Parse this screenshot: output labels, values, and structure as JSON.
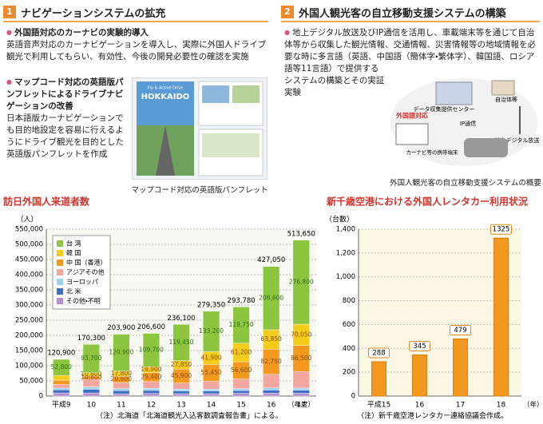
{
  "sections": [
    {
      "number": "1",
      "title": "ナビゲーションシステムの拡充",
      "items": [
        {
          "head": "外国語対応のカーナビの実験的導入",
          "body": "英語音声対応のカーナビゲーションを導入し、実際に外国人ドライブ観光で利用してもらい、有効性、今後の開発必要性の確認を実施"
        },
        {
          "head": "マップコード対応の英語版パンフレットによるドライブナビゲーションの改善",
          "body": "日本語版カーナビゲーションでも目的地設定を容易に行えるようにドライブ観光を目的とした英語版パンフレットを作成"
        }
      ],
      "image_texts": [
        "Fly & Active Drive",
        "HOKKAIDO"
      ],
      "caption": "マップコード対応の英語版パンフレット"
    },
    {
      "number": "2",
      "title": "外国人観光客の自立移動支援システムの構築",
      "items": [
        {
          "body": "地上デジタル放送及びIP通信を活用し、車載端末等を通じて自治体等から収集した観光情報、交通情報、災害情報等の地域情報を必要な時に多言語（英語、中国語（簡体字・繁体字）、韓国語、ロシア語等11言語）で提供するシステムの構築とその実証実験"
        }
      ],
      "diagram_labels": [
        "データ収集提供センター",
        "自治体等",
        "IP通信",
        "地上デジタル放送等",
        "外国語対応",
        "カーナビ等の携帯端末"
      ],
      "caption": "外国人観光客の自立移動支援システムの概要"
    }
  ],
  "chart_data": [
    {
      "type": "bar",
      "stacked": true,
      "title": "訪日外国人来道者数",
      "y_unit": "（人）",
      "x_unit": "（年度）",
      "note": "（注）北海道「北海道観光入込客数調査報告書」による。",
      "categories": [
        "平成9",
        "10",
        "11",
        "12",
        "13",
        "14",
        "15",
        "16",
        "17"
      ],
      "ylim": [
        0,
        550000
      ],
      "yticks": [
        0,
        {
          "value": 50000,
          "label": "50,000"
        },
        {
          "value": 100000,
          "label": "100,000"
        },
        {
          "value": 150000,
          "label": "150,000"
        },
        {
          "value": 200000,
          "label": "200,000"
        },
        {
          "value": 250000,
          "label": "250,000"
        },
        {
          "value": 300000,
          "label": "300,000"
        },
        {
          "value": 350000,
          "label": "350,000"
        },
        {
          "value": 400000,
          "label": "400,000"
        },
        {
          "value": 450000,
          "label": "450,000"
        },
        {
          "value": 500000,
          "label": "500,000"
        },
        {
          "value": 550000,
          "label": "550,000"
        }
      ],
      "grid": true,
      "legend": "top-left",
      "series": [
        {
          "name": "台 湾",
          "color": "#8cc63f",
          "values": [
            52800,
            93700,
            120900,
            109700,
            119450,
            133200,
            119750,
            208600,
            276800
          ],
          "value_labels": [
            "52,800",
            "93,700",
            "120,900",
            "109,700",
            "119,450",
            "133,200",
            "119,750",
            "208,600",
            "276,800"
          ]
        },
        {
          "name": "韓 国",
          "color": "#f5cc1a",
          "values": [
            15600,
            10800,
            17800,
            19900,
            27850,
            41900,
            61200,
            63850,
            70050
          ],
          "value_labels": [
            null,
            "10,800",
            "17,800",
            "19,900",
            "27,850",
            "41,900",
            "61,200",
            "63,850",
            "70,050"
          ]
        },
        {
          "name": "中 国（香港）",
          "color": "#f39a1e",
          "values": [
            14200,
            10600,
            20600,
            29400,
            45900,
            55450,
            56600,
            82750,
            86500
          ],
          "value_labels": [
            null,
            "10,600",
            "20,600",
            "29,400",
            "45,900",
            "55,450",
            "56,600",
            "82,750",
            "86,500"
          ]
        },
        {
          "name": "アジアその他",
          "color": "#f4a6a0",
          "values": [
            12000,
            25000,
            20000,
            22000,
            20000,
            26000,
            32000,
            45000,
            54000
          ]
        },
        {
          "name": "ヨーロッパ",
          "color": "#9ad3f0",
          "values": [
            6000,
            8000,
            7000,
            7000,
            6000,
            6000,
            6000,
            7000,
            7000
          ]
        },
        {
          "name": "北 米",
          "color": "#3f6fc2",
          "values": [
            10000,
            12000,
            10000,
            10000,
            9000,
            9000,
            9000,
            10000,
            10000
          ]
        },
        {
          "name": "その他・不明",
          "color": "#b58fcf",
          "values": [
            10300,
            10200,
            7600,
            8600,
            7900,
            7800,
            9230,
            9850,
            9300
          ]
        }
      ],
      "totals": [
        120900,
        170300,
        203900,
        206600,
        236100,
        279350,
        293780,
        427050,
        513650
      ],
      "total_labels": [
        "120,900",
        "170,300",
        "203,900",
        "206,600",
        "236,100",
        "279,350",
        "293,780",
        "427,050",
        "513,650"
      ]
    },
    {
      "type": "bar",
      "title": "新千歳空港における外国人レンタカー利用状況",
      "y_unit": "（台数）",
      "x_unit": "（年）",
      "note": "（注）新千歳空港レンタカー連絡協議会作成。",
      "categories": [
        "平成15",
        "16",
        "17",
        "18"
      ],
      "values": [
        288,
        345,
        479,
        1325
      ],
      "color": "#f39a1e",
      "ylim": [
        0,
        1400
      ],
      "yticks": [
        0,
        200,
        400,
        600,
        800,
        {
          "value": 1000,
          "label": "1,000"
        },
        {
          "value": 1200,
          "label": "1,200"
        },
        {
          "value": 1400,
          "label": "1,400"
        }
      ],
      "grid": true
    }
  ]
}
